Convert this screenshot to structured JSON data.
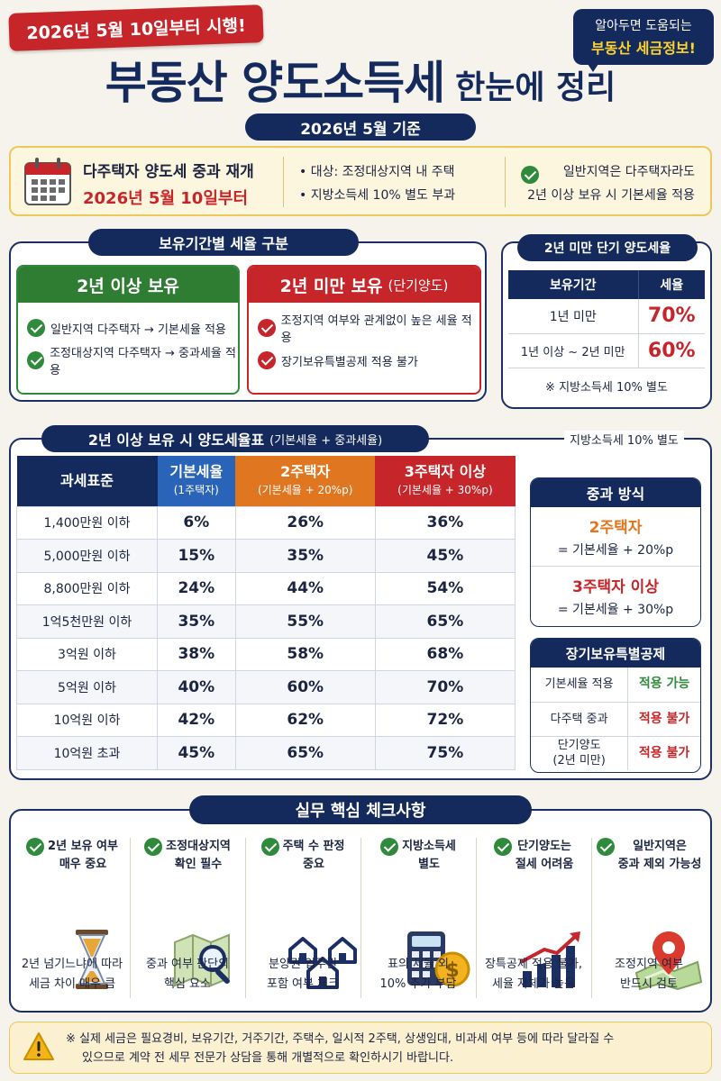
{
  "header": {
    "ribbon": "2026년 5월 10일부터 시행!",
    "badge_line1": "알아두면 도움되는",
    "badge_line2": "부동산 세금정보!",
    "title_big": "부동산 양도소득세",
    "title_small": "한눈에 정리",
    "subtitle": "2026년 5월 기준"
  },
  "notice": {
    "title": "다주택자 양도세 중과 재개",
    "date": "2026년 5월 10일부터",
    "items": [
      "• 대상: 조정대상지역 내 주택",
      "• 지방소득세 10% 별도 부과"
    ],
    "right_line1": "일반지역은 다주택자라도",
    "right_line2": "2년 이상 보유 시 기본세율 적용"
  },
  "holding": {
    "section_title": "보유기간별 세율 구분",
    "long": {
      "title": "2년 이상 보유",
      "items": [
        "일반지역 다주택자 → 기본세율 적용",
        "조정대상지역 다주택자 → 중과세율 적용"
      ]
    },
    "short": {
      "title": "2년 미만 보유",
      "title_suffix": "(단기양도)",
      "items": [
        "조정지역 여부와 관계없이 높은 세율 적용",
        "장기보유특별공제 적용 불가"
      ]
    }
  },
  "short_term": {
    "title": "2년 미만 단기 양도세율",
    "col_period": "보유기간",
    "col_rate": "세율",
    "rows": [
      {
        "period": "1년 미만",
        "rate": "70%"
      },
      {
        "period": "1년 이상 ~ 2년 미만",
        "rate": "60%"
      }
    ],
    "note": "※ 지방소득세 10% 별도"
  },
  "rate_table": {
    "title": "2년 이상 보유 시 양도세율표",
    "title_suffix": "(기본세율 + 중과세율)",
    "note": "지방소득세 10% 별도",
    "headers": [
      {
        "main": "과세표준",
        "sub": ""
      },
      {
        "main": "기본세율",
        "sub": "(1주택자)"
      },
      {
        "main": "2주택자",
        "sub": "(기본세율 + 20%p)"
      },
      {
        "main": "3주택자 이상",
        "sub": "(기본세율 + 30%p)"
      }
    ],
    "rows": [
      [
        "1,400만원 이하",
        "6%",
        "26%",
        "36%"
      ],
      [
        "5,000만원 이하",
        "15%",
        "35%",
        "45%"
      ],
      [
        "8,800만원 이하",
        "24%",
        "44%",
        "54%"
      ],
      [
        "1억5천만원 이하",
        "35%",
        "55%",
        "65%"
      ],
      [
        "3억원 이하",
        "38%",
        "58%",
        "68%"
      ],
      [
        "5억원 이하",
        "40%",
        "60%",
        "70%"
      ],
      [
        "10억원 이하",
        "42%",
        "62%",
        "72%"
      ],
      [
        "10억원 초과",
        "45%",
        "65%",
        "75%"
      ]
    ]
  },
  "surcharge": {
    "title": "중과 방식",
    "two_label": "2주택자",
    "two_formula": "= 기본세율 + 20%p",
    "three_label": "3주택자 이상",
    "three_formula": "= 기본세율 + 30%p"
  },
  "deduction": {
    "title": "장기보유특별공제",
    "rows": [
      {
        "label": "기본세율 적용",
        "value": "적용 가능",
        "status_color": "#2f8a3c"
      },
      {
        "label": "다주택 중과",
        "value": "적용 불가",
        "status_color": "#c6262a"
      },
      {
        "label1": "단기양도",
        "label2": "(2년 미만)",
        "value": "적용 불가",
        "status_color": "#c6262a"
      }
    ]
  },
  "checklist": {
    "title": "실무 핵심 체크사항",
    "items": [
      {
        "t1": "2년 보유 여부",
        "t2": "매우 중요",
        "b1": "2년 넘기느냐에 따라",
        "b2": "세금 차이 매우 큼",
        "icon": "hourglass-icon"
      },
      {
        "t1": "조정대상지역",
        "t2": "확인 필수",
        "b1": "중과 여부 판단의",
        "b2": "핵심 요소",
        "icon": "map-magnifier-icon"
      },
      {
        "t1": "주택 수 판정",
        "t2": "중요",
        "b1": "분양권·입주권",
        "b2": "포함 여부 체크",
        "icon": "houses-icon"
      },
      {
        "t1": "지방소득세",
        "t2": "별도",
        "b1": "표의 세율 외",
        "b2": "10% 추가 부담",
        "icon": "calculator-coin-icon"
      },
      {
        "t1": "단기양도는",
        "t2": "절세 어려움",
        "b1": "장특공제 적용 불가,",
        "b2": "세율 자체가 높음",
        "icon": "rising-chart-icon"
      },
      {
        "t1": "일반지역은",
        "t2": "중과 제외 가능성",
        "b1": "조정지역 여부",
        "b2": "반드시 검토",
        "icon": "map-pin-icon"
      }
    ]
  },
  "footer": {
    "line1": "※ 실제 세금은 필요경비, 보유기간, 거주기간, 주택수, 일시적 2주택, 상생임대, 비과세 여부 등에 따라 달라질 수",
    "line2": "있으므로 계약 전 세무 전문가 상담을 통해 개별적으로 확인하시기 바랍니다."
  }
}
